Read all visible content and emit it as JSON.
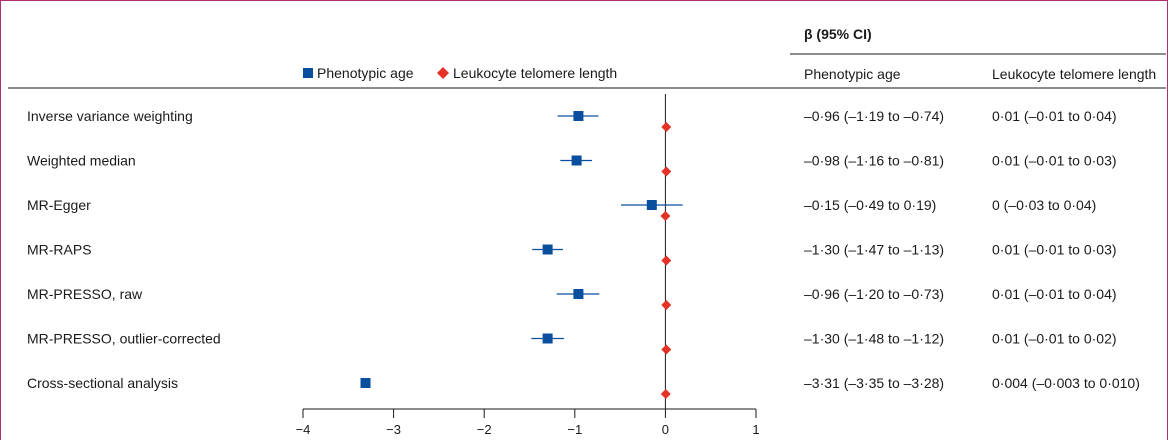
{
  "chart_data": {
    "type": "forest",
    "xlim": [
      -4,
      1
    ],
    "xticks": [
      -4,
      -3,
      -2,
      -1,
      0,
      1
    ],
    "x_tick_labels": [
      "−4",
      "−3",
      "−2",
      "−1",
      "0",
      "1"
    ],
    "reference_line": 0,
    "grid": false,
    "legend_position": "top",
    "columns_header": "β (95% CI)",
    "column_labels": [
      "Phenotypic age",
      "Leukocyte telomere length"
    ],
    "series": [
      {
        "name": "Phenotypic age",
        "marker": "square",
        "color": "#0a4f9e",
        "points": [
          {
            "x": -0.96,
            "lo": -1.19,
            "hi": -0.74
          },
          {
            "x": -0.98,
            "lo": -1.16,
            "hi": -0.81
          },
          {
            "x": -0.15,
            "lo": -0.49,
            "hi": 0.19
          },
          {
            "x": -1.3,
            "lo": -1.47,
            "hi": -1.13
          },
          {
            "x": -0.96,
            "lo": -1.2,
            "hi": -0.73
          },
          {
            "x": -1.3,
            "lo": -1.48,
            "hi": -1.12
          },
          {
            "x": -3.31,
            "lo": -3.35,
            "hi": -3.28
          }
        ]
      },
      {
        "name": "Leukocyte telomere length",
        "marker": "diamond",
        "color": "#e53226",
        "points": [
          {
            "x": 0.01,
            "lo": -0.01,
            "hi": 0.04
          },
          {
            "x": 0.01,
            "lo": -0.01,
            "hi": 0.03
          },
          {
            "x": 0,
            "lo": -0.03,
            "hi": 0.04
          },
          {
            "x": 0.01,
            "lo": -0.01,
            "hi": 0.03
          },
          {
            "x": 0.01,
            "lo": -0.01,
            "hi": 0.04
          },
          {
            "x": 0.01,
            "lo": -0.01,
            "hi": 0.02
          },
          {
            "x": 0.004,
            "lo": -0.003,
            "hi": 0.01
          }
        ]
      }
    ],
    "rows": [
      {
        "label": "Inverse variance weighting",
        "pa_text": "–0·96 (–1·19 to –0·74)",
        "ltl_text": "0·01 (–0·01 to 0·04)"
      },
      {
        "label": "Weighted median",
        "pa_text": "–0·98 (–1·16 to –0·81)",
        "ltl_text": "0·01 (–0·01 to 0·03)"
      },
      {
        "label": "MR-Egger",
        "pa_text": "–0·15 (–0·49 to 0·19)",
        "ltl_text": "0 (–0·03 to 0·04)"
      },
      {
        "label": "MR-RAPS",
        "pa_text": "–1·30 (–1·47 to –1·13)",
        "ltl_text": "0·01 (–0·01 to 0·03)"
      },
      {
        "label": "MR-PRESSO, raw",
        "pa_text": "–0·96 (–1·20 to –0·73)",
        "ltl_text": "0·01 (–0·01 to 0·04)"
      },
      {
        "label": "MR-PRESSO, outlier-corrected",
        "pa_text": "–1·30 (–1·48 to –1·12)",
        "ltl_text": "0·01 (–0·01 to 0·02)"
      },
      {
        "label": "Cross-sectional analysis",
        "pa_text": "–3·31 (–3·35 to –3·28)",
        "ltl_text": "0·004 (–0·003 to 0·010)"
      }
    ]
  }
}
